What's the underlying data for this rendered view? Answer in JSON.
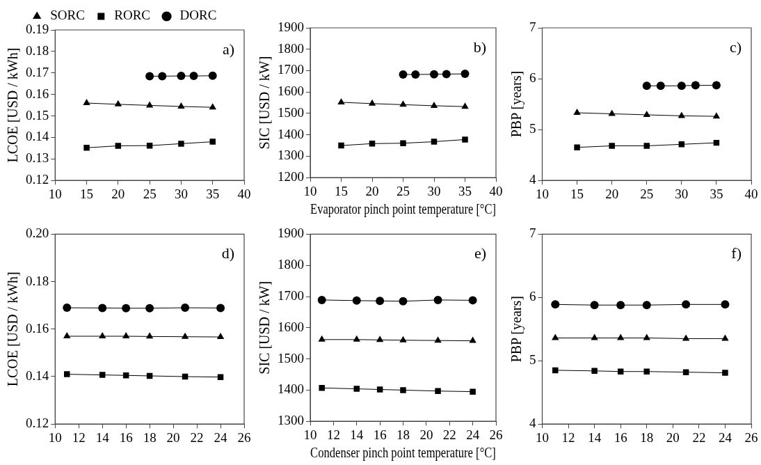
{
  "chart_data": [
    {
      "type": "line",
      "ylabel": "LCOE [USD / kWh]",
      "annotations": [
        "a)"
      ],
      "legend": "top",
      "xlim": [
        10,
        40
      ],
      "xticks": [
        10,
        15,
        20,
        25,
        30,
        35,
        40
      ],
      "ylim": [
        0.12,
        0.19
      ],
      "yticks": [
        0.12,
        0.13,
        0.14,
        0.15,
        0.16,
        0.17,
        0.18,
        0.19
      ],
      "grid": false,
      "series": [
        {
          "name": "SORC",
          "color": "#000000",
          "marker": "triangle",
          "x": [
            15,
            20,
            25,
            30,
            35
          ],
          "values": [
            0.156,
            0.1554,
            0.1549,
            0.1544,
            0.154
          ]
        },
        {
          "name": "RORC",
          "color": "#000000",
          "marker": "square",
          "x": [
            15,
            20,
            25,
            30,
            35
          ],
          "values": [
            0.1352,
            0.1361,
            0.1362,
            0.1371,
            0.138
          ]
        },
        {
          "name": "DORC",
          "color": "#000000",
          "marker": "circle",
          "x": [
            25,
            27,
            30,
            32,
            35
          ],
          "values": [
            0.1685,
            0.1685,
            0.1686,
            0.1686,
            0.1687
          ]
        }
      ]
    },
    {
      "type": "line",
      "ylabel": "SIC [USD / kW]",
      "xlabel": "Evaporator pinch point temperature [°C]",
      "annotations": [
        "b)"
      ],
      "xlim": [
        10,
        40
      ],
      "xticks": [
        10,
        15,
        20,
        25,
        30,
        35,
        40
      ],
      "ylim": [
        1200,
        1900
      ],
      "yticks": [
        1200,
        1300,
        1400,
        1500,
        1600,
        1700,
        1800,
        1900
      ],
      "grid": false,
      "series": [
        {
          "color": "#000000",
          "marker": "triangle",
          "x": [
            15,
            20,
            25,
            30,
            35
          ],
          "values": [
            1552,
            1546,
            1541,
            1536,
            1532
          ]
        },
        {
          "color": "#000000",
          "marker": "square",
          "x": [
            15,
            20,
            25,
            30,
            35
          ],
          "values": [
            1350,
            1359,
            1361,
            1368,
            1378
          ]
        },
        {
          "color": "#000000",
          "marker": "circle",
          "x": [
            25,
            27,
            30,
            32,
            35
          ],
          "values": [
            1682,
            1682,
            1683,
            1684,
            1685
          ]
        }
      ]
    },
    {
      "type": "line",
      "ylabel": "PBP [years]",
      "annotations": [
        "c)"
      ],
      "xlim": [
        10,
        40
      ],
      "xticks": [
        10,
        15,
        20,
        25,
        30,
        35,
        40
      ],
      "ylim": [
        4,
        7
      ],
      "yticks": [
        4,
        5,
        6,
        7
      ],
      "grid": false,
      "series": [
        {
          "color": "#000000",
          "marker": "triangle",
          "x": [
            15,
            20,
            25,
            30,
            35
          ],
          "values": [
            5.33,
            5.31,
            5.29,
            5.27,
            5.26
          ]
        },
        {
          "color": "#000000",
          "marker": "square",
          "x": [
            15,
            20,
            25,
            30,
            35
          ],
          "values": [
            4.65,
            4.68,
            4.68,
            4.71,
            4.74
          ]
        },
        {
          "color": "#000000",
          "marker": "circle",
          "x": [
            25,
            27,
            30,
            32,
            35
          ],
          "values": [
            5.86,
            5.86,
            5.86,
            5.87,
            5.87
          ]
        }
      ]
    },
    {
      "type": "line",
      "ylabel": "LCOE [USD / kWh]",
      "annotations": [
        "d)"
      ],
      "xlim": [
        10,
        26
      ],
      "xticks": [
        10,
        12,
        14,
        16,
        18,
        20,
        22,
        24,
        26
      ],
      "ylim": [
        0.12,
        0.2
      ],
      "yticks": [
        {
          "value": 0.12,
          "label": "0.12"
        },
        {
          "value": 0.14,
          "label": "0.14"
        },
        {
          "value": 0.16,
          "label": "0.16"
        },
        {
          "value": 0.18,
          "label": "0.18"
        },
        {
          "value": 0.2,
          "label": "0.20"
        }
      ],
      "grid": false,
      "series": [
        {
          "color": "#000000",
          "marker": "triangle",
          "x": [
            11,
            14,
            16,
            18,
            21,
            24
          ],
          "values": [
            0.157,
            0.157,
            0.157,
            0.1569,
            0.1568,
            0.1567
          ]
        },
        {
          "color": "#000000",
          "marker": "square",
          "x": [
            11,
            14,
            16,
            18,
            21,
            24
          ],
          "values": [
            0.141,
            0.1407,
            0.1405,
            0.1403,
            0.14,
            0.1398
          ]
        },
        {
          "color": "#000000",
          "marker": "circle",
          "x": [
            11,
            14,
            16,
            18,
            21,
            24
          ],
          "values": [
            0.169,
            0.1689,
            0.1688,
            0.1688,
            0.169,
            0.1689
          ]
        }
      ]
    },
    {
      "type": "line",
      "ylabel": "SIC [USD / kW]",
      "xlabel": "Condenser pinch point temperature [°C]",
      "annotations": [
        "e)"
      ],
      "xlim": [
        10,
        26
      ],
      "xticks": [
        10,
        12,
        14,
        16,
        18,
        20,
        22,
        24,
        26
      ],
      "ylim": [
        1300,
        1900
      ],
      "yticks": [
        1300,
        1400,
        1500,
        1600,
        1700,
        1800,
        1900
      ],
      "grid": false,
      "series": [
        {
          "color": "#000000",
          "marker": "triangle",
          "x": [
            11,
            14,
            16,
            18,
            21,
            24
          ],
          "values": [
            1562,
            1562,
            1561,
            1560,
            1559,
            1558
          ]
        },
        {
          "color": "#000000",
          "marker": "square",
          "x": [
            11,
            14,
            16,
            18,
            21,
            24
          ],
          "values": [
            1407,
            1404,
            1402,
            1400,
            1397,
            1395
          ]
        },
        {
          "color": "#000000",
          "marker": "circle",
          "x": [
            11,
            14,
            16,
            18,
            21,
            24
          ],
          "values": [
            1689,
            1687,
            1686,
            1685,
            1689,
            1688
          ]
        }
      ]
    },
    {
      "type": "line",
      "ylabel": "PBP [years]",
      "annotations": [
        "f)"
      ],
      "xlim": [
        10,
        26
      ],
      "xticks": [
        10,
        12,
        14,
        16,
        18,
        20,
        22,
        24,
        26
      ],
      "ylim": [
        4,
        7
      ],
      "yticks": [
        4,
        5,
        6,
        7
      ],
      "grid": false,
      "series": [
        {
          "color": "#000000",
          "marker": "triangle",
          "x": [
            11,
            14,
            16,
            18,
            21,
            24
          ],
          "values": [
            5.36,
            5.36,
            5.36,
            5.36,
            5.35,
            5.35
          ]
        },
        {
          "color": "#000000",
          "marker": "square",
          "x": [
            11,
            14,
            16,
            18,
            21,
            24
          ],
          "values": [
            4.85,
            4.84,
            4.83,
            4.83,
            4.82,
            4.81
          ]
        },
        {
          "color": "#000000",
          "marker": "circle",
          "x": [
            11,
            14,
            16,
            18,
            21,
            24
          ],
          "values": [
            5.89,
            5.88,
            5.88,
            5.88,
            5.89,
            5.89
          ]
        }
      ]
    }
  ]
}
